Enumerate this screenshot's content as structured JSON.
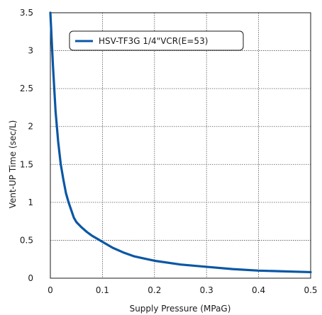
{
  "chart_data": {
    "type": "line",
    "title": "",
    "xlabel": "Supply Pressure (MPaG)",
    "ylabel": "Vent-UP Time  (sec/L)",
    "xlim": [
      0,
      0.5
    ],
    "ylim": [
      0,
      3.5
    ],
    "x_ticks": [
      "0",
      "0.1",
      "0.2",
      "0.3",
      "0.4",
      "0.5"
    ],
    "y_ticks": [
      "0",
      "0.5",
      "1",
      "1.5",
      "2",
      "2.5",
      "3",
      "3.5"
    ],
    "grid": true,
    "legend_position": "top-left",
    "series": [
      {
        "name": "HSV-TF3G  1/4\"VCR(E=53)",
        "color": "#0a57a4",
        "x": [
          0.0,
          0.005,
          0.01,
          0.015,
          0.02,
          0.025,
          0.03,
          0.035,
          0.04,
          0.045,
          0.05,
          0.06,
          0.07,
          0.08,
          0.09,
          0.1,
          0.12,
          0.14,
          0.16,
          0.18,
          0.2,
          0.25,
          0.3,
          0.35,
          0.4,
          0.45,
          0.5
        ],
        "y": [
          3.5,
          2.8,
          2.2,
          1.8,
          1.5,
          1.3,
          1.12,
          1.0,
          0.9,
          0.8,
          0.74,
          0.67,
          0.61,
          0.56,
          0.52,
          0.48,
          0.4,
          0.34,
          0.29,
          0.26,
          0.23,
          0.18,
          0.15,
          0.12,
          0.1,
          0.09,
          0.08
        ]
      }
    ]
  }
}
